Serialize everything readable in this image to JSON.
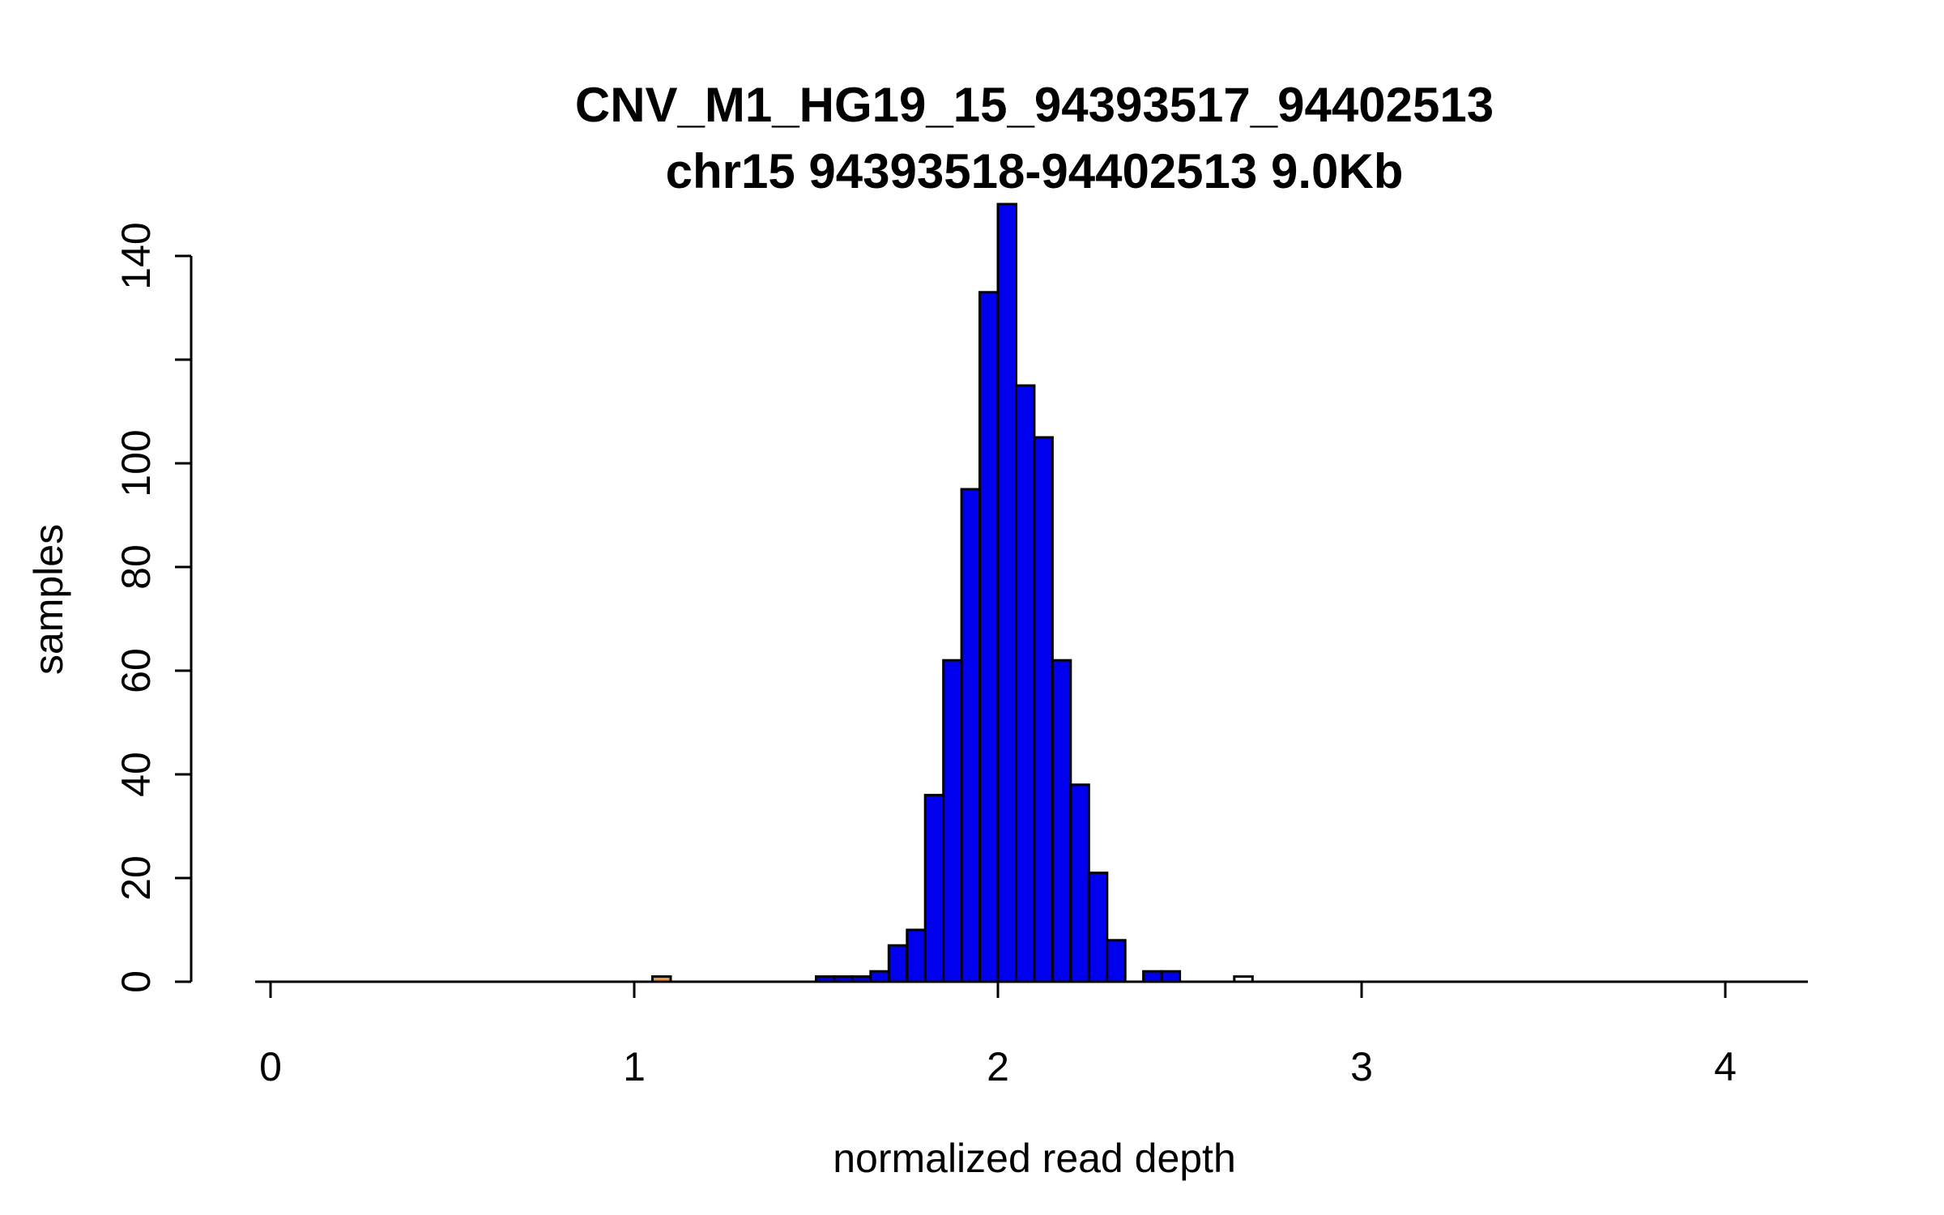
{
  "page": {
    "background": "#FFFFFF"
  },
  "chart_data": {
    "type": "bar",
    "subtype": "histogram",
    "title": "CNV_M1_HG19_15_94393517_94402513",
    "subtitle": "chr15 94393518-94402513 9.0Kb",
    "xlabel": "normalized read depth",
    "ylabel": "samples",
    "x_ticks": [
      0,
      1,
      2,
      3,
      4
    ],
    "y_ticks": [
      0,
      20,
      40,
      60,
      80,
      100,
      120,
      140
    ],
    "y_tick_labels": [
      "0",
      "20",
      "40",
      "60",
      "80",
      "100",
      "",
      "140"
    ],
    "xlim": [
      -0.2,
      4.25
    ],
    "ylim": [
      0,
      150
    ],
    "bin_width": 0.05,
    "grid": false,
    "legend": false,
    "colors": {
      "bar_fill": "#0000EE",
      "bar_border": "#000000",
      "axis": "#000000",
      "low_outlier_fill": "#EE9A49",
      "high_outlier_fill": "#FFFFFF"
    },
    "bars": [
      {
        "x": 1.05,
        "count": 1,
        "fill": "low_outlier_fill"
      },
      {
        "x": 1.5,
        "count": 1
      },
      {
        "x": 1.55,
        "count": 1
      },
      {
        "x": 1.6,
        "count": 1
      },
      {
        "x": 1.65,
        "count": 2
      },
      {
        "x": 1.7,
        "count": 7
      },
      {
        "x": 1.75,
        "count": 10
      },
      {
        "x": 1.8,
        "count": 36
      },
      {
        "x": 1.85,
        "count": 62
      },
      {
        "x": 1.9,
        "count": 95
      },
      {
        "x": 1.95,
        "count": 133
      },
      {
        "x": 2.0,
        "count": 150
      },
      {
        "x": 2.05,
        "count": 115
      },
      {
        "x": 2.1,
        "count": 105
      },
      {
        "x": 2.15,
        "count": 62
      },
      {
        "x": 2.2,
        "count": 38
      },
      {
        "x": 2.25,
        "count": 21
      },
      {
        "x": 2.3,
        "count": 8
      },
      {
        "x": 2.4,
        "count": 2
      },
      {
        "x": 2.45,
        "count": 2
      },
      {
        "x": 2.65,
        "count": 1,
        "fill": "high_outlier_fill"
      }
    ]
  }
}
